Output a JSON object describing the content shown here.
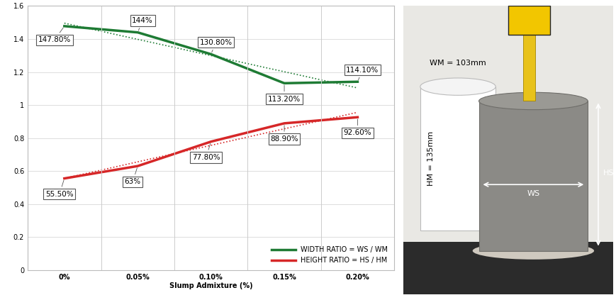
{
  "chart_data": {
    "type": "line",
    "x_label": "Slump Admixture (%)",
    "categories": [
      "0%",
      "0.05%",
      "0.10%",
      "0.15%",
      "0.20%"
    ],
    "ylim": [
      0,
      1.6
    ],
    "yticks": [
      0,
      0.2,
      0.4,
      0.6,
      0.8,
      1,
      1.2,
      1.4,
      1.6
    ],
    "grid": true,
    "legend": "lower right",
    "data_labels": true,
    "series": [
      {
        "name": "WIDTH RATIO = WS / WM",
        "color": "#1e7b34",
        "marker": "none",
        "line_style": "solid",
        "values": [
          1.478,
          1.44,
          1.308,
          1.132,
          1.141
        ],
        "value_labels": [
          "147.80%",
          "144%",
          "130.80%",
          "113.20%",
          "114.10%"
        ]
      },
      {
        "name": "HEIGHT RATIO = HS / HM",
        "color": "#d62728",
        "marker": "none",
        "line_style": "solid",
        "values": [
          0.555,
          0.63,
          0.778,
          0.889,
          0.926
        ],
        "value_labels": [
          "55.50%",
          "63%",
          "77.80%",
          "88.90%",
          "92.60%"
        ]
      }
    ]
  },
  "image": {
    "mould_width": "WM = 103mm",
    "mould_height": "HM = 135mm",
    "slump_width": "WS",
    "slump_height": "HS"
  }
}
